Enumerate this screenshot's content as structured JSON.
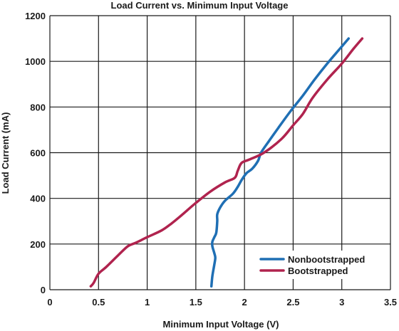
{
  "chart_data": {
    "type": "line",
    "title": "Load Current vs. Minimum Input Voltage",
    "xlabel": "Minimum Input Voltage (V)",
    "ylabel": "Load Current (mA)",
    "xlim": [
      0,
      3.5
    ],
    "ylim": [
      0,
      1200
    ],
    "xticks": [
      0,
      0.5,
      1,
      1.5,
      2,
      2.5,
      3,
      3.5
    ],
    "xtick_labels": [
      "0",
      "0.5",
      "1",
      "1.5",
      "2",
      "2.5",
      "3",
      "3.5"
    ],
    "yticks": [
      0,
      200,
      400,
      600,
      800,
      1000,
      1200
    ],
    "ytick_labels": [
      "0",
      "200",
      "400",
      "600",
      "800",
      "1000",
      "1200"
    ],
    "grid": true,
    "legend_position": "bottom-right",
    "series": [
      {
        "name": "Nonbootstrapped",
        "color": "#1f6fb4",
        "points": [
          [
            1.66,
            15
          ],
          [
            1.67,
            60
          ],
          [
            1.69,
            110
          ],
          [
            1.7,
            140
          ],
          [
            1.69,
            160
          ],
          [
            1.67,
            190
          ],
          [
            1.67,
            210
          ],
          [
            1.69,
            230
          ],
          [
            1.71,
            250
          ],
          [
            1.72,
            300
          ],
          [
            1.72,
            330
          ],
          [
            1.75,
            360
          ],
          [
            1.8,
            390
          ],
          [
            1.88,
            420
          ],
          [
            1.93,
            450
          ],
          [
            1.97,
            480
          ],
          [
            2.02,
            510
          ],
          [
            2.08,
            530
          ],
          [
            2.14,
            565
          ],
          [
            2.17,
            600
          ],
          [
            2.25,
            650
          ],
          [
            2.35,
            710
          ],
          [
            2.47,
            780
          ],
          [
            2.6,
            850
          ],
          [
            2.72,
            920
          ],
          [
            2.85,
            990
          ],
          [
            2.98,
            1055
          ],
          [
            3.07,
            1100
          ]
        ]
      },
      {
        "name": "Bootstrapped",
        "color": "#b0234e",
        "points": [
          [
            0.42,
            15
          ],
          [
            0.45,
            30
          ],
          [
            0.5,
            70
          ],
          [
            0.58,
            100
          ],
          [
            0.7,
            150
          ],
          [
            0.8,
            190
          ],
          [
            0.88,
            205
          ],
          [
            1.0,
            230
          ],
          [
            1.15,
            260
          ],
          [
            1.25,
            290
          ],
          [
            1.35,
            325
          ],
          [
            1.5,
            380
          ],
          [
            1.65,
            430
          ],
          [
            1.8,
            470
          ],
          [
            1.9,
            490
          ],
          [
            1.93,
            520
          ],
          [
            1.97,
            555
          ],
          [
            2.05,
            570
          ],
          [
            2.2,
            600
          ],
          [
            2.38,
            660
          ],
          [
            2.5,
            720
          ],
          [
            2.6,
            770
          ],
          [
            2.7,
            840
          ],
          [
            2.85,
            920
          ],
          [
            3.0,
            990
          ],
          [
            3.12,
            1055
          ],
          [
            3.21,
            1100
          ]
        ]
      }
    ]
  }
}
